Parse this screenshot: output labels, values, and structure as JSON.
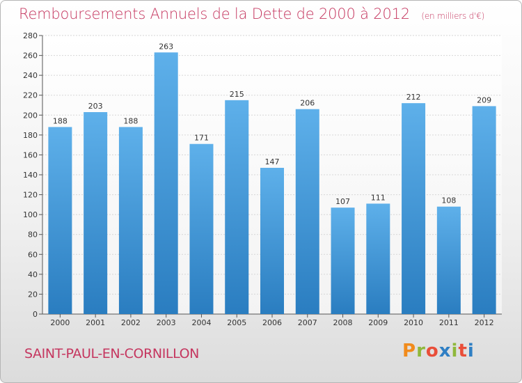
{
  "header": {
    "title": "Remboursements Annuels de la Dette de 2000 à 2012",
    "unit": "(en milliers d'€)"
  },
  "footer": {
    "commune": "SAINT-PAUL-EN-CORNILLON",
    "brand": "Proxiti"
  },
  "colors": {
    "title": "#c5365f",
    "bar_light": "#5eb0ea",
    "bar_dark": "#2a7dc0",
    "brand": [
      "#f18b1c",
      "#8fb83b",
      "#e94e39",
      "#2f7fc4",
      "#8fb83b",
      "#e94e39",
      "#2f7fc4"
    ]
  },
  "chart_data": {
    "type": "bar",
    "categories": [
      "2000",
      "2001",
      "2002",
      "2003",
      "2004",
      "2005",
      "2006",
      "2007",
      "2008",
      "2009",
      "2010",
      "2011",
      "2012"
    ],
    "values": [
      188,
      203,
      188,
      263,
      171,
      215,
      147,
      206,
      107,
      111,
      212,
      108,
      209
    ],
    "title": "Remboursements Annuels de la Dette de 2000 à 2012",
    "xlabel": "",
    "ylabel": "",
    "ylim": [
      0,
      280
    ],
    "yticks": [
      0,
      20,
      40,
      60,
      80,
      100,
      120,
      140,
      160,
      180,
      200,
      220,
      240,
      260,
      280
    ],
    "grid": true,
    "data_labels": true
  }
}
